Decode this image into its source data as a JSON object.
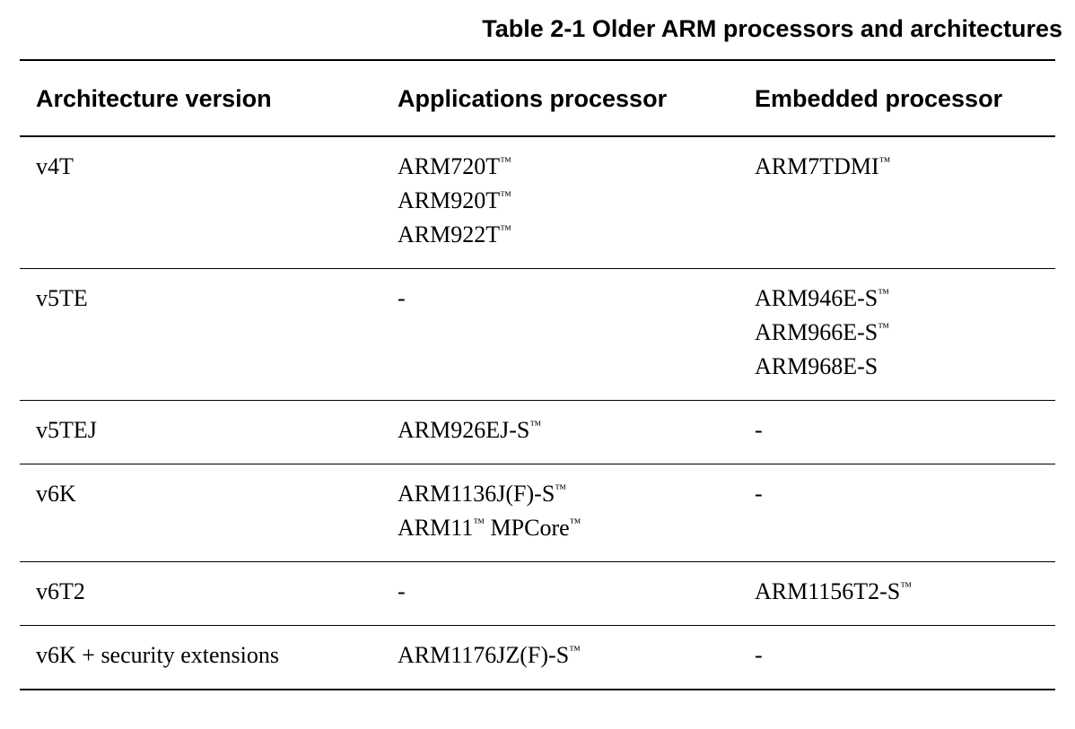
{
  "caption": "Table 2-1 Older ARM processors and architectures",
  "table": {
    "columns": [
      "Architecture version",
      "Applications processor",
      "Embedded processor"
    ],
    "trademark_symbol": "™",
    "rows": [
      {
        "architecture": "v4T",
        "applications": [
          [
            {
              "t": "ARM720T",
              "tm": true
            }
          ],
          [
            {
              "t": "ARM920T",
              "tm": true
            }
          ],
          [
            {
              "t": "ARM922T",
              "tm": true
            }
          ]
        ],
        "embedded": [
          [
            {
              "t": "ARM7TDMI",
              "tm": true
            }
          ]
        ]
      },
      {
        "architecture": "v5TE",
        "applications": [
          [
            {
              "t": "-",
              "tm": false
            }
          ]
        ],
        "embedded": [
          [
            {
              "t": "ARM946E-S",
              "tm": true
            }
          ],
          [
            {
              "t": "ARM966E-S",
              "tm": true
            }
          ],
          [
            {
              "t": "ARM968E-S",
              "tm": false
            }
          ]
        ]
      },
      {
        "architecture": "v5TEJ",
        "applications": [
          [
            {
              "t": "ARM926EJ-S",
              "tm": true
            }
          ]
        ],
        "embedded": [
          [
            {
              "t": "-",
              "tm": false
            }
          ]
        ]
      },
      {
        "architecture": "v6K",
        "applications": [
          [
            {
              "t": "ARM1136J(F)-S",
              "tm": true
            }
          ],
          [
            {
              "t": "ARM11",
              "tm": true
            },
            {
              "t": " MPCore",
              "tm": true
            }
          ]
        ],
        "embedded": [
          [
            {
              "t": "-",
              "tm": false
            }
          ]
        ]
      },
      {
        "architecture": "v6T2",
        "applications": [
          [
            {
              "t": "-",
              "tm": false
            }
          ]
        ],
        "embedded": [
          [
            {
              "t": "ARM1156T2-S",
              "tm": true
            }
          ]
        ]
      },
      {
        "architecture": "v6K + security extensions",
        "applications": [
          [
            {
              "t": "ARM1176JZ(F)-S",
              "tm": true
            }
          ]
        ],
        "embedded": [
          [
            {
              "t": "-",
              "tm": false
            }
          ]
        ]
      }
    ]
  }
}
